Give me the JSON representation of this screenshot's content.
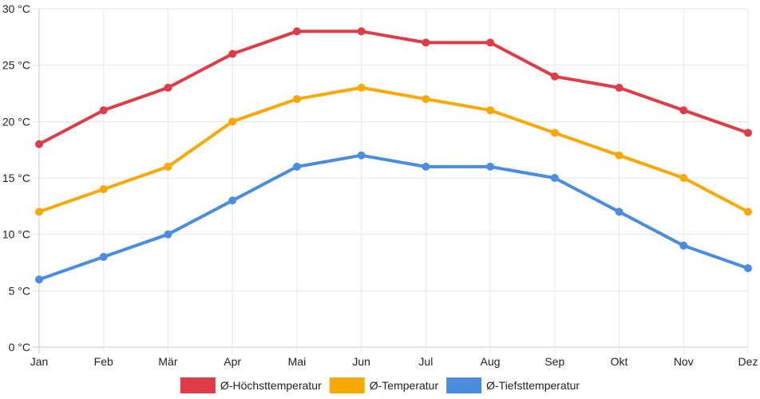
{
  "chart_data": {
    "type": "line",
    "title": "",
    "xlabel": "",
    "ylabel": "",
    "categories": [
      "Jan",
      "Feb",
      "Mär",
      "Apr",
      "Mai",
      "Jun",
      "Jul",
      "Aug",
      "Sep",
      "Okt",
      "Nov",
      "Dez"
    ],
    "ylim": [
      0,
      30
    ],
    "y_ticks": [
      0,
      5,
      10,
      15,
      20,
      25,
      30
    ],
    "y_unit": "°C",
    "grid": true,
    "legend_position": "bottom",
    "series": [
      {
        "name": "Ø-Höchsttemperatur",
        "color": "#e03c47",
        "values": [
          18,
          21,
          23,
          26,
          28,
          28,
          27,
          27,
          24,
          23,
          21,
          19
        ]
      },
      {
        "name": "Ø-Temperatur",
        "color": "#f9a806",
        "values": [
          12,
          14,
          16,
          20,
          22,
          23,
          22,
          21,
          19,
          17,
          15,
          12
        ]
      },
      {
        "name": "Ø-Tiefsttemperatur",
        "color": "#4a8ddf",
        "values": [
          6,
          8,
          10,
          13,
          16,
          17,
          16,
          16,
          15,
          12,
          9,
          7
        ]
      }
    ]
  }
}
